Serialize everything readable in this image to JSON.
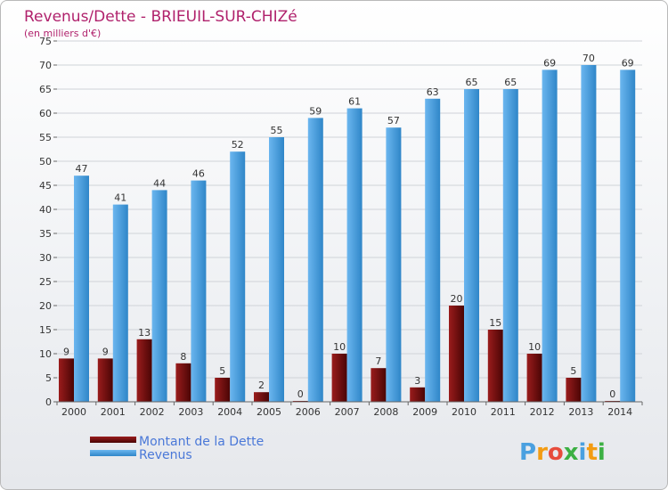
{
  "chart_data": {
    "type": "bar",
    "title": "Revenus/Dette - BRIEUIL-SUR-CHIZé",
    "subtitle": "(en milliers d'€)",
    "categories": [
      "2000",
      "2001",
      "2002",
      "2003",
      "2004",
      "2005",
      "2006",
      "2007",
      "2008",
      "2009",
      "2010",
      "2011",
      "2012",
      "2013",
      "2014"
    ],
    "series": [
      {
        "name": "Montant de la Dette",
        "color": "#7a1010",
        "values": [
          9,
          9,
          13,
          8,
          5,
          2,
          0,
          10,
          7,
          3,
          20,
          15,
          10,
          5,
          0
        ]
      },
      {
        "name": "Revenus",
        "color": "#4aa0e0",
        "values": [
          47,
          41,
          44,
          46,
          52,
          55,
          59,
          61,
          57,
          63,
          65,
          65,
          69,
          70,
          69
        ]
      }
    ],
    "ylim": [
      0,
      75
    ],
    "yticks": [
      0,
      5,
      10,
      15,
      20,
      25,
      30,
      35,
      40,
      45,
      50,
      55,
      60,
      65,
      70,
      75
    ],
    "xlabel": "",
    "ylabel": "",
    "grid": true,
    "legend": "bottom-left"
  },
  "logo": {
    "letters": [
      "P",
      "r",
      "o",
      "x",
      "i",
      "t",
      "i"
    ],
    "colors": [
      "#4aa0e0",
      "#f39c12",
      "#e74c3c",
      "#3cb043",
      "#4aa0e0",
      "#f39c12",
      "#3cb043"
    ]
  }
}
